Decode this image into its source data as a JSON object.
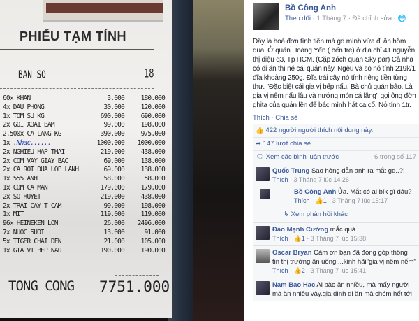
{
  "receipt": {
    "title": "PHIẾU TẠM TÍNH",
    "table_label": "BAN SO",
    "table_number": "18",
    "items": [
      {
        "qty": "60x",
        "name": "KHAN",
        "price": "3.000",
        "total": "180.000"
      },
      {
        "qty": "4x",
        "name": "DAU PHONG",
        "price": "30.000",
        "total": "120.000"
      },
      {
        "qty": "1x",
        "name": "TOM SU KG",
        "price": "690.000",
        "total": "690.000"
      },
      {
        "qty": "2x",
        "name": "GOI XOAI BAM",
        "price": "99.000",
        "total": "198.000"
      },
      {
        "qty": "2.500x",
        "name": "CA LANG KG",
        "price": "390.000",
        "total": "975.000"
      },
      {
        "qty": "1x",
        "name": ".Nhac......",
        "price": "1000.000",
        "total": "1000.000"
      },
      {
        "qty": "2x",
        "name": "NGHIEU HAP THAI",
        "price": "219.000",
        "total": "438.000"
      },
      {
        "qty": "2x",
        "name": "COM VAY GIAY BAC",
        "price": "69.000",
        "total": "138.000"
      },
      {
        "qty": "2x",
        "name": "CA ROT DUA UOP LANH",
        "price": "69.000",
        "total": "138.000"
      },
      {
        "qty": "1x",
        "name": "555 ANH",
        "price": "58.000",
        "total": "58.000"
      },
      {
        "qty": "1x",
        "name": "COM CA MAN",
        "price": "179.000",
        "total": "179.000"
      },
      {
        "qty": "2x",
        "name": "SO HUYET",
        "price": "219.000",
        "total": "438.000"
      },
      {
        "qty": "2x",
        "name": "TRAI CAY T CAM",
        "price": "99.000",
        "total": "198.000"
      },
      {
        "qty": "1x",
        "name": "MIT",
        "price": "119.000",
        "total": "119.000"
      },
      {
        "qty": "96x",
        "name": "HEINEKEN LON",
        "price": "26.000",
        "total": "2496.000"
      },
      {
        "qty": "7x",
        "name": "NUOC SUOI",
        "price": "13.000",
        "total": "91.000"
      },
      {
        "qty": "5x",
        "name": "TIGER CHAI DEN",
        "price": "21.000",
        "total": "105.000"
      },
      {
        "qty": "1x",
        "name": "GIA VI BEP NAU",
        "price": "190.000",
        "total": "190.000"
      }
    ],
    "total_label": "TONG CONG",
    "total_value": "7751.000"
  },
  "post": {
    "author": "Bồ Công Anh",
    "follow": "Theo dõi",
    "date": "1 Tháng 7",
    "edited": "Đã chỉnh sửa",
    "text": "Đây là hoá đơn tính tiền mà gd mình vừa đi ăn hôm qua. Ở quán Hoàng Yến ( bến tre) ở địa chỉ 41 nguyễn thị diệu q3, Tp HCM. (Cặp zách quán Sky par) Cả nhà có đi ăn thì né cái quán nầy. Ngêu và sò nó tính 219k/1 đĩa khoảng 250g. Đĩa trái cây nó tính riêng tiền từng thư. \"Đặc biệt cái gia vị bếp nấu. Bà chủ quán bảo. Là gia vị nêm nấu lẫu và nướng món cá lăng\" gọi ông đờn ghita của quán lên để bác mình hát ca cổ. Nó tính 1tr.",
    "like": "Thích",
    "share": "Chia sẻ",
    "likes_text": "422 người người thích nội dung này.",
    "shares_text": "147 lượt chia sẻ",
    "prev_comments": "Xem các bình luận trước",
    "comment_count": "6 trong số 117",
    "more_replies": "Xem phản hồi khác"
  },
  "comments": [
    {
      "author": "Quốc Trung",
      "text": "Sao hông dẫn anh ra mắt gd..?!",
      "likes": "",
      "time": "3 Tháng 7 lúc 14:26"
    },
    {
      "author": "Bồ Công Anh",
      "text": "Ủa. Mắt có ai bík gì đâu?",
      "likes": "1",
      "time": "3 Tháng 7 lúc 15:17"
    },
    {
      "author": "Đào Mạnh Cường",
      "text": "mắc quá",
      "likes": "1",
      "time": "3 Tháng 7 lúc 15:38"
    },
    {
      "author": "Oscar Bryan",
      "text": "Cám ơn bạn đã đóng góp thông tin thị trường ăn uống....kinh hãi\"gia vị nêm nếm\"",
      "likes": "2",
      "time": "3 Tháng 7 lúc 15:41"
    },
    {
      "author": "Nam Bao Hac",
      "text": "Ai bảo ăn nhiều, mà mấy người mà ăn nhiều vậy.gia đình đi ăn mà chém hết tới",
      "likes": "",
      "time": ""
    }
  ]
}
